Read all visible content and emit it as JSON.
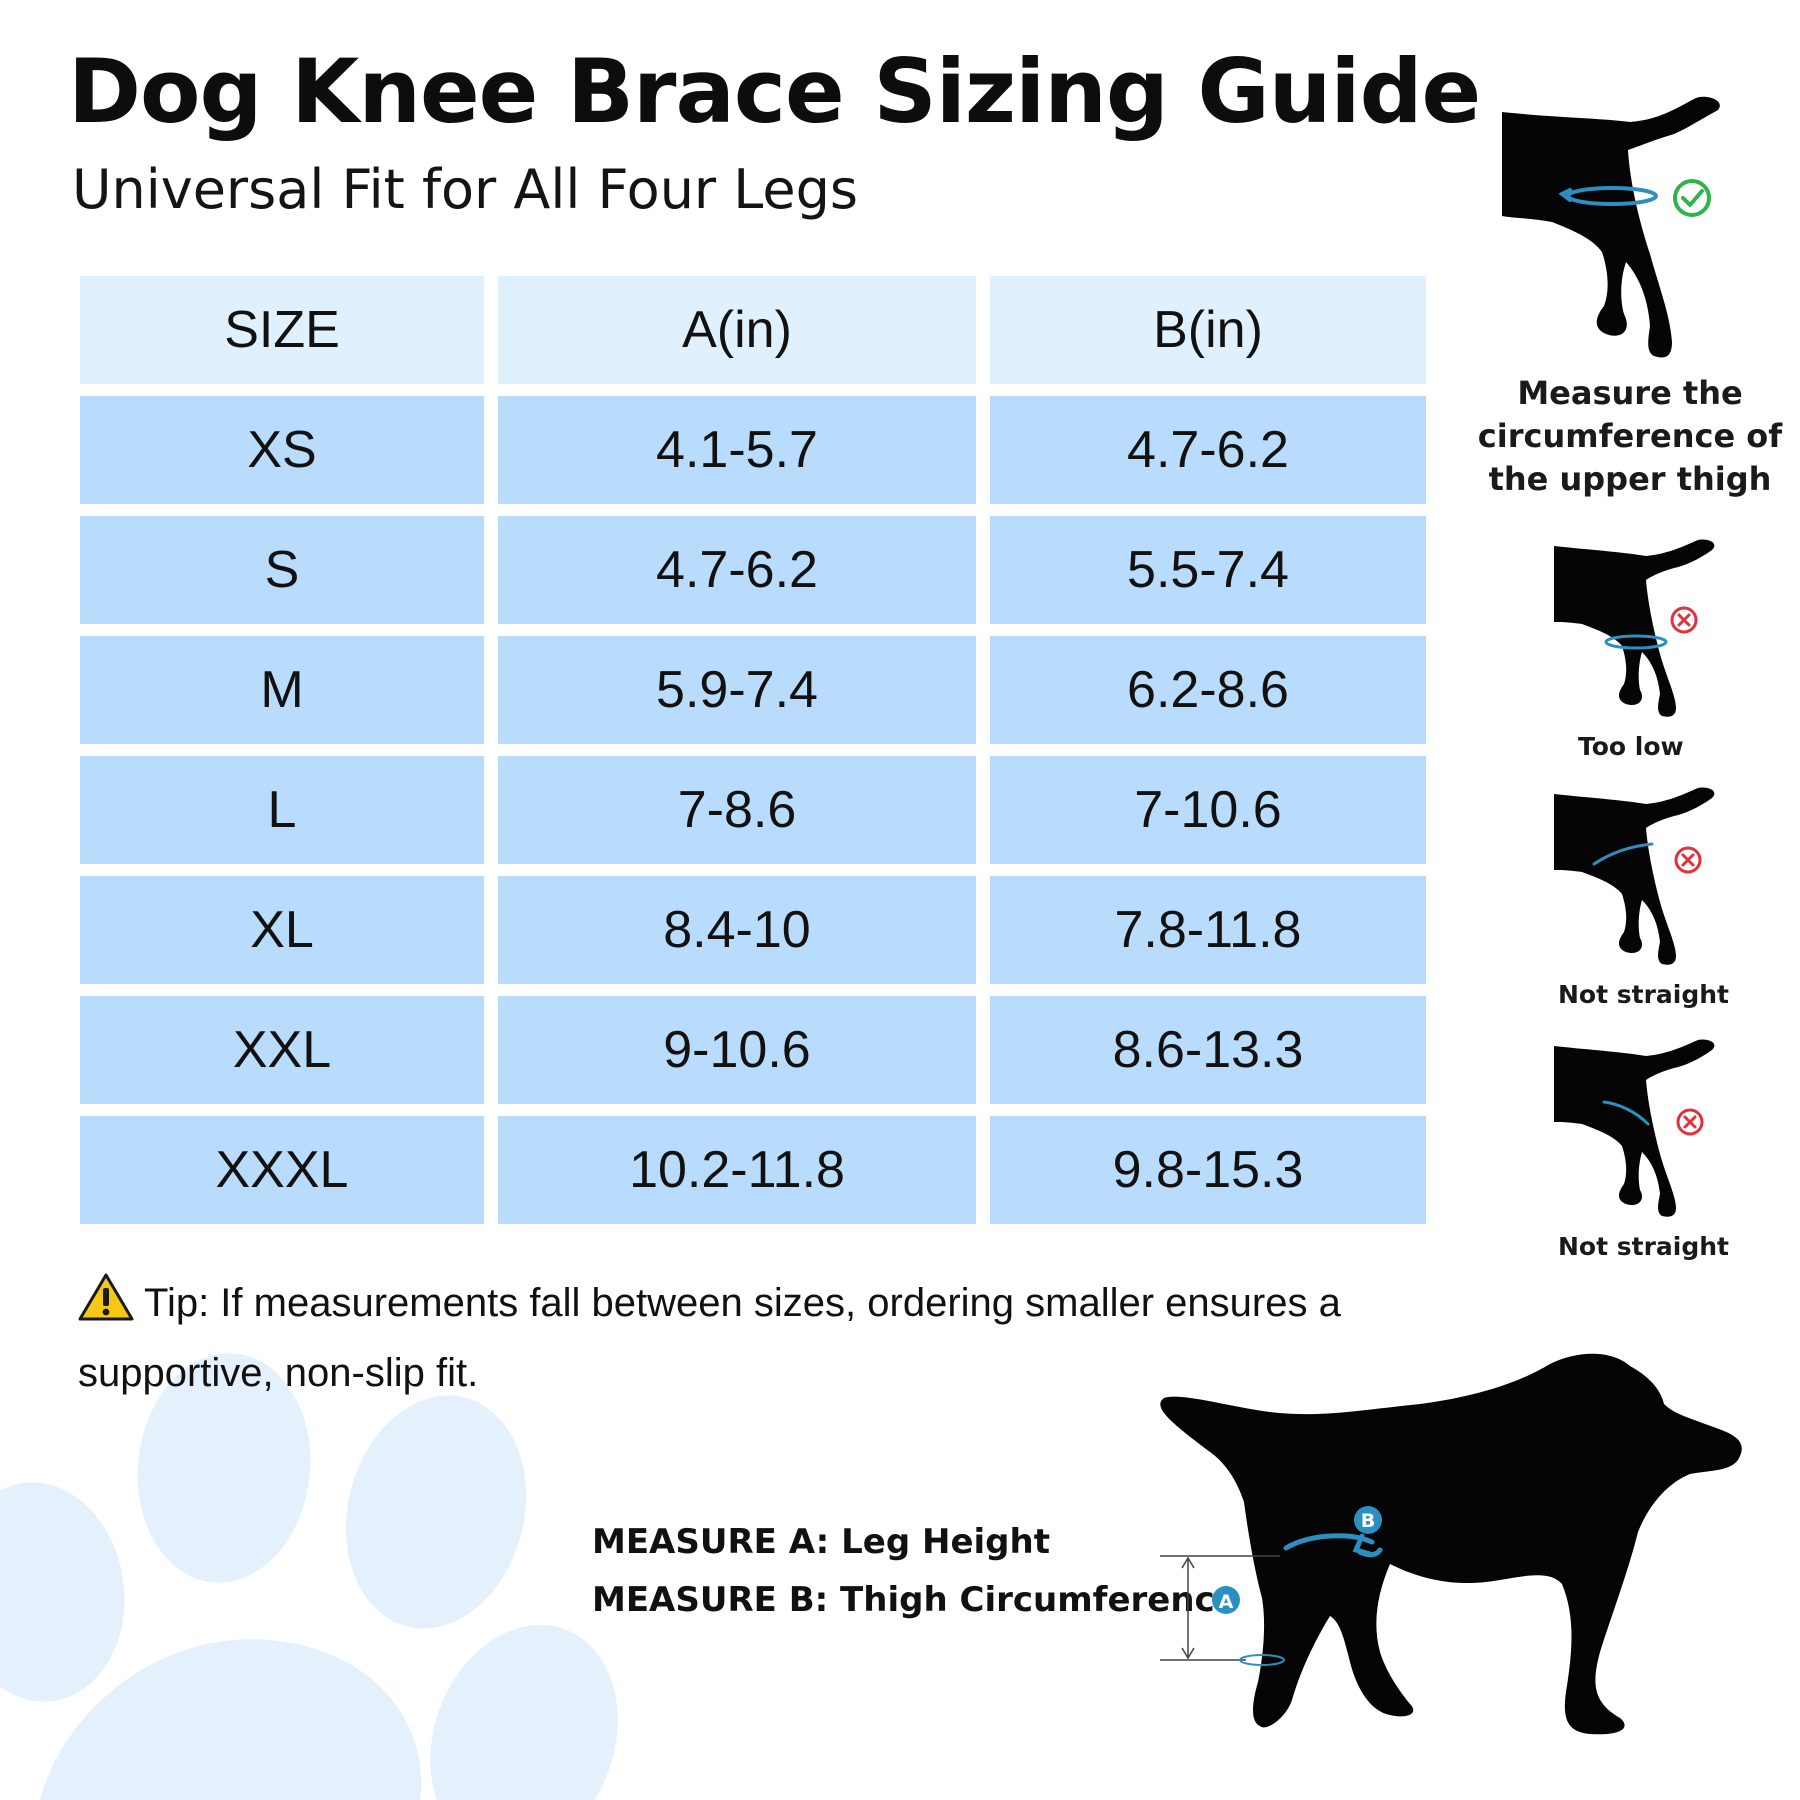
{
  "header": {
    "title": "Dog Knee Brace Sizing Guide",
    "subtitle": "Universal Fit for All Four Legs"
  },
  "table": {
    "headers": [
      "SIZE",
      "A(in)",
      "B(in)"
    ],
    "rows": [
      [
        "XS",
        "4.1-5.7",
        "4.7-6.2"
      ],
      [
        "S",
        "4.7-6.2",
        "5.5-7.4"
      ],
      [
        "M",
        "5.9-7.4",
        "6.2-8.6"
      ],
      [
        "L",
        "7-8.6",
        "7-10.6"
      ],
      [
        "XL",
        "8.4-10",
        "7.8-11.8"
      ],
      [
        "XXL",
        "9-10.6",
        "8.6-13.3"
      ],
      [
        "XXXL",
        "10.2-11.8",
        "9.8-15.3"
      ]
    ]
  },
  "tip": {
    "icon": "warning-icon",
    "text": "Tip: If measurements fall between sizes, ordering smaller ensures a supportive, non-slip fit."
  },
  "measures": {
    "a": "MEASURE A: Leg Height",
    "b": "MEASURE B: Thigh Circumference",
    "marker_a": "A",
    "marker_b": "B"
  },
  "side_panel": {
    "correct": {
      "label": "Measure the circumference of the upper thigh",
      "icon": "check-circle-icon"
    },
    "wrong": [
      {
        "label": "Too low",
        "icon": "x-circle-icon"
      },
      {
        "label": "Not straight",
        "icon": "x-circle-icon"
      },
      {
        "label": "Not straight",
        "icon": "x-circle-icon"
      }
    ]
  },
  "colors": {
    "header_cell": "#e1f0fd",
    "body_cell": "#b9dcfc",
    "paw": "#e4f1fc",
    "measure_line": "#2b8fc2",
    "check": "#2fb34a",
    "error": "#e0323a",
    "warning": "#f6c816"
  }
}
